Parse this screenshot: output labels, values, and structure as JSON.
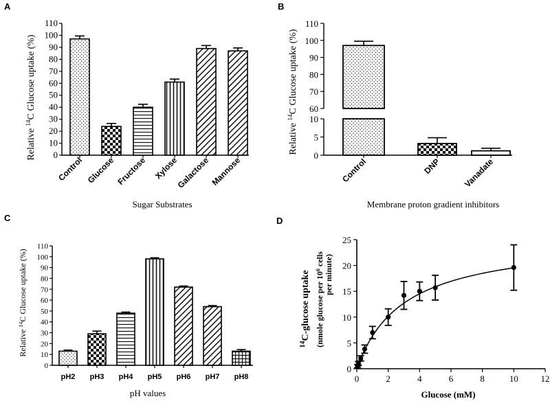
{
  "panels": {
    "a": {
      "letter": "A"
    },
    "b": {
      "letter": "B"
    },
    "c": {
      "letter": "C"
    },
    "d": {
      "letter": "D"
    }
  },
  "chart_data": [
    {
      "type": "bar",
      "panel": "A",
      "title": "",
      "ylabel_prefix": "Relative ",
      "ylabel_sup": "14",
      "ylabel_suffix": "C Glucose uptake (%)",
      "xlabel": "Sugar Substrates",
      "ylim": [
        0,
        110
      ],
      "yticks": [
        0,
        10,
        20,
        30,
        40,
        50,
        60,
        70,
        80,
        90,
        100,
        110
      ],
      "categories": [
        "Control",
        "Glucose",
        "Fructose",
        "Xylose",
        "Galactose",
        "Mannose"
      ],
      "values": [
        97,
        24,
        40,
        61,
        89,
        87
      ],
      "errors": [
        2.5,
        2.5,
        2.5,
        2.5,
        2.5,
        2.5
      ],
      "patterns": [
        "dots",
        "checker",
        "hlines",
        "vlines",
        "diag",
        "diag"
      ]
    },
    {
      "type": "bar",
      "panel": "B",
      "title": "",
      "ylabel_prefix": "Relative ",
      "ylabel_sup": "14",
      "ylabel_suffix": "C Glucose uptake (%)",
      "xlabel": "Membrane proton gradient inhibitors",
      "axis_break": [
        10,
        60
      ],
      "ylim": [
        0,
        110
      ],
      "yticks_lower": [
        0,
        5,
        10
      ],
      "yticks_upper": [
        60,
        70,
        80,
        90,
        100,
        110
      ],
      "categories": [
        "Control",
        "DNP",
        "Vanadate"
      ],
      "values": [
        97,
        3.2,
        1.2
      ],
      "errors": [
        2.5,
        1.6,
        0.7
      ],
      "patterns": [
        "dots",
        "checker",
        "white"
      ]
    },
    {
      "type": "bar",
      "panel": "C",
      "title": "",
      "ylabel_prefix": "Relative ",
      "ylabel_sup": "14",
      "ylabel_suffix": "C Glucose uptake (%)",
      "xlabel": "pH values",
      "ylim": [
        0,
        110
      ],
      "yticks": [
        0,
        10,
        20,
        30,
        40,
        50,
        60,
        70,
        80,
        90,
        100,
        110
      ],
      "categories": [
        "pH2",
        "pH3",
        "pH4",
        "pH5",
        "pH6",
        "pH7",
        "pH8"
      ],
      "values": [
        13,
        29,
        48,
        98,
        72,
        54,
        13
      ],
      "errors": [
        1.0,
        2.5,
        1.0,
        1.0,
        1.0,
        1.0,
        1.5
      ],
      "patterns": [
        "dots",
        "checker",
        "hlines",
        "vlines",
        "diag",
        "diag",
        "grid"
      ]
    },
    {
      "type": "scatter",
      "panel": "D",
      "title": "",
      "ylabel_sup": "14",
      "ylabel_main": "C-glucose uptake",
      "ylabel_sub_prefix": "(nmole glucose per 10",
      "ylabel_sub_sup": "6",
      "ylabel_sub_suffix": " cells",
      "ylabel_sub2": "per minute)",
      "xlabel": "Glucose (mM)",
      "xlim": [
        0,
        12
      ],
      "ylim": [
        0,
        25
      ],
      "xticks": [
        0,
        2,
        4,
        6,
        8,
        10,
        12
      ],
      "yticks": [
        0,
        5,
        10,
        15,
        20,
        25
      ],
      "x": [
        0.05,
        0.1,
        0.25,
        0.5,
        1,
        2,
        3,
        4,
        5,
        10
      ],
      "y": [
        0.5,
        1.0,
        2.0,
        3.8,
        7.0,
        10.0,
        14.2,
        15.0,
        15.7,
        19.6
      ],
      "errors": [
        0.3,
        0.4,
        0.5,
        0.8,
        1.2,
        1.6,
        2.7,
        1.8,
        2.4,
        4.4
      ],
      "fit": {
        "type": "michaelis-menten",
        "vmax": 25.4,
        "km": 3.0
      }
    }
  ]
}
